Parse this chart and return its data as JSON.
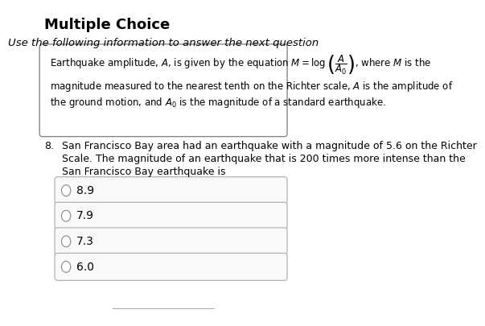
{
  "title": "Multiple Choice",
  "subtitle": "Use the following information to answer the next question",
  "question_number": "8.",
  "question_text_line1": "San Francisco Bay area had an earthquake with a magnitude of 5.6 on the Richter",
  "question_text_line2": "Scale. The magnitude of an earthquake that is 200 times more intense than the",
  "question_text_line3": "San Francisco Bay earthquake is",
  "choices": [
    "8.9",
    "7.9",
    "7.3",
    "6.0"
  ],
  "bg_color": "#ffffff",
  "text_color": "#000000",
  "box_border_color": "#888888",
  "choice_box_bg": "#f9f9f9",
  "choice_box_border": "#aaaaaa",
  "title_fontsize": 13,
  "subtitle_fontsize": 9.5,
  "body_fontsize": 9.0,
  "choice_fontsize": 10
}
